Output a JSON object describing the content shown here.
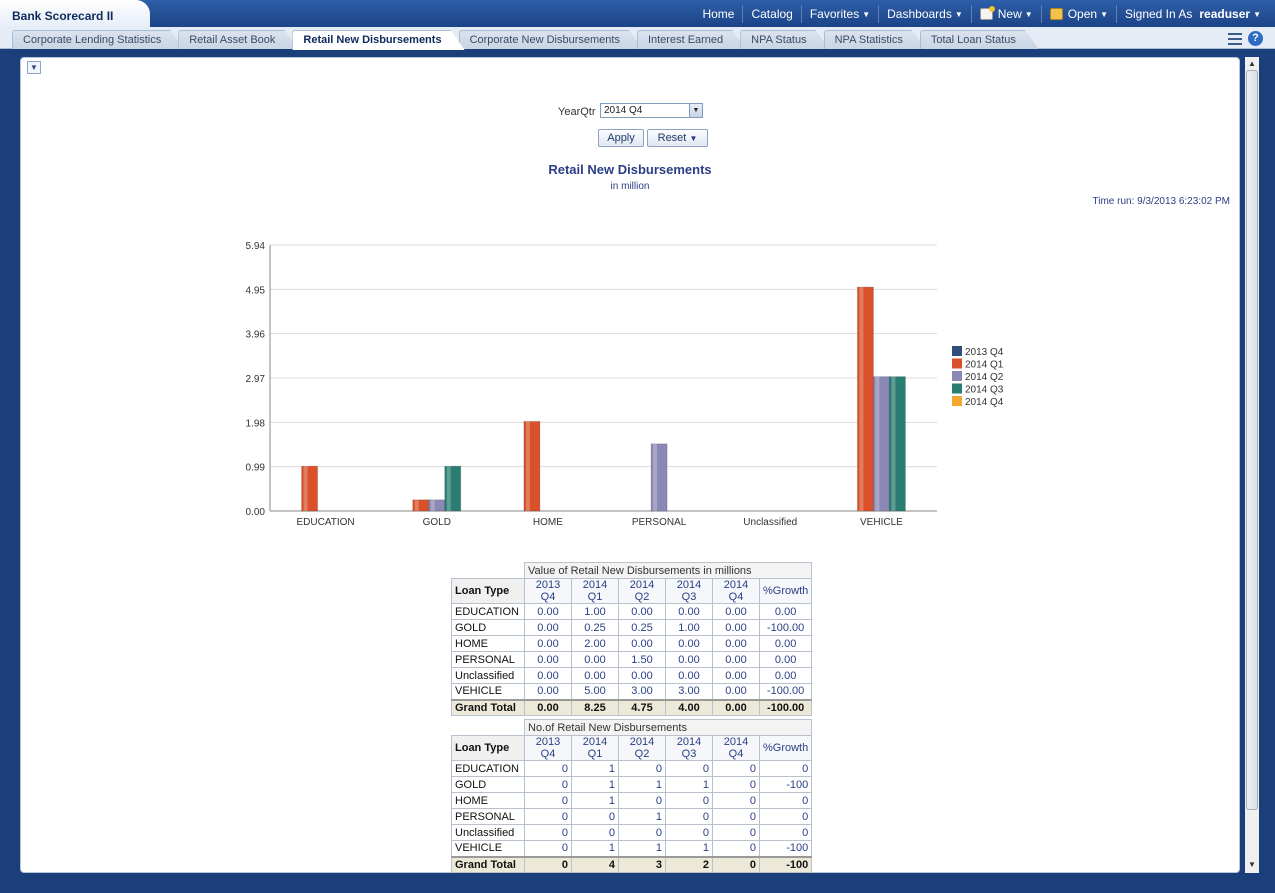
{
  "header": {
    "app_title": "Bank Scorecard II",
    "nav": [
      {
        "label": "Home",
        "caret": false
      },
      {
        "label": "Catalog",
        "caret": false
      },
      {
        "label": "Favorites",
        "caret": true
      },
      {
        "label": "Dashboards",
        "caret": true
      },
      {
        "label": "New",
        "caret": true,
        "icon": "new-icon"
      },
      {
        "label": "Open",
        "caret": true,
        "icon": "open-folder-icon"
      }
    ],
    "signed_in_label": "Signed In As",
    "username": "readuser"
  },
  "tabs": [
    {
      "label": "Corporate Lending Statistics",
      "active": false
    },
    {
      "label": "Retail Asset Book",
      "active": false
    },
    {
      "label": "Retail New Disbursements",
      "active": true
    },
    {
      "label": "Corporate New Disbursements",
      "active": false
    },
    {
      "label": "Interest Earned",
      "active": false
    },
    {
      "label": "NPA Status",
      "active": false
    },
    {
      "label": "NPA Statistics",
      "active": false
    },
    {
      "label": "Total Loan Status",
      "active": false
    }
  ],
  "prompt": {
    "label": "YearQtr",
    "value": "2014 Q4",
    "apply_label": "Apply",
    "reset_label": "Reset"
  },
  "report": {
    "title": "Retail New Disbursements",
    "subtitle": "in million",
    "time_run": "Time run: 9/3/2013 6:23:02 PM"
  },
  "chart_data": {
    "type": "bar",
    "categories": [
      "EDUCATION",
      "GOLD",
      "HOME",
      "PERSONAL",
      "Unclassified",
      "VEHICLE"
    ],
    "series": [
      {
        "name": "2013 Q4",
        "color": "#2f4e7a",
        "values": [
          0,
          0,
          0,
          0,
          0,
          0
        ]
      },
      {
        "name": "2014 Q1",
        "color": "#d9502a",
        "values": [
          1,
          0.25,
          2,
          0,
          0,
          5
        ]
      },
      {
        "name": "2014 Q2",
        "color": "#8a88b4",
        "values": [
          0,
          0.25,
          0,
          1.5,
          0,
          3
        ]
      },
      {
        "name": "2014 Q3",
        "color": "#2a7d72",
        "values": [
          0,
          1,
          0,
          0,
          0,
          3
        ]
      },
      {
        "name": "2014 Q4",
        "color": "#f4a72e",
        "values": [
          0,
          0,
          0,
          0,
          0,
          0
        ]
      }
    ],
    "y_ticks": [
      "0.00",
      "0.99",
      "1.98",
      "2.97",
      "3.96",
      "4.95",
      "5.94"
    ],
    "ylim": [
      0,
      5.94
    ],
    "grid": true,
    "legend_position": "right"
  },
  "table_value": {
    "caption": "Value of Retail New Disbursements in millions",
    "row_header": "Loan Type",
    "columns": [
      "2013 Q4",
      "2014 Q1",
      "2014 Q2",
      "2014 Q3",
      "2014 Q4",
      "%Growth"
    ],
    "rows": [
      {
        "label": "EDUCATION",
        "cells": [
          "0.00",
          "1.00",
          "0.00",
          "0.00",
          "0.00",
          "0.00"
        ]
      },
      {
        "label": "GOLD",
        "cells": [
          "0.00",
          "0.25",
          "0.25",
          "1.00",
          "0.00",
          "-100.00"
        ]
      },
      {
        "label": "HOME",
        "cells": [
          "0.00",
          "2.00",
          "0.00",
          "0.00",
          "0.00",
          "0.00"
        ]
      },
      {
        "label": "PERSONAL",
        "cells": [
          "0.00",
          "0.00",
          "1.50",
          "0.00",
          "0.00",
          "0.00"
        ]
      },
      {
        "label": "Unclassified",
        "cells": [
          "0.00",
          "0.00",
          "0.00",
          "0.00",
          "0.00",
          "0.00"
        ]
      },
      {
        "label": "VEHICLE",
        "cells": [
          "0.00",
          "5.00",
          "3.00",
          "3.00",
          "0.00",
          "-100.00"
        ]
      }
    ],
    "total": {
      "label": "Grand Total",
      "cells": [
        "0.00",
        "8.25",
        "4.75",
        "4.00",
        "0.00",
        "-100.00"
      ]
    }
  },
  "table_count": {
    "caption": "No.of Retail New Disbursements",
    "row_header": "Loan Type",
    "columns": [
      "2013 Q4",
      "2014 Q1",
      "2014 Q2",
      "2014 Q3",
      "2014 Q4",
      "%Growth"
    ],
    "rows": [
      {
        "label": "EDUCATION",
        "cells": [
          "0",
          "1",
          "0",
          "0",
          "0",
          "0"
        ]
      },
      {
        "label": "GOLD",
        "cells": [
          "0",
          "1",
          "1",
          "1",
          "0",
          "-100"
        ]
      },
      {
        "label": "HOME",
        "cells": [
          "0",
          "1",
          "0",
          "0",
          "0",
          "0"
        ]
      },
      {
        "label": "PERSONAL",
        "cells": [
          "0",
          "0",
          "1",
          "0",
          "0",
          "0"
        ]
      },
      {
        "label": "Unclassified",
        "cells": [
          "0",
          "0",
          "0",
          "0",
          "0",
          "0"
        ]
      },
      {
        "label": "VEHICLE",
        "cells": [
          "0",
          "1",
          "1",
          "1",
          "0",
          "-100"
        ]
      }
    ],
    "total": {
      "label": "Grand Total",
      "cells": [
        "0",
        "4",
        "3",
        "2",
        "0",
        "-100"
      ]
    }
  }
}
